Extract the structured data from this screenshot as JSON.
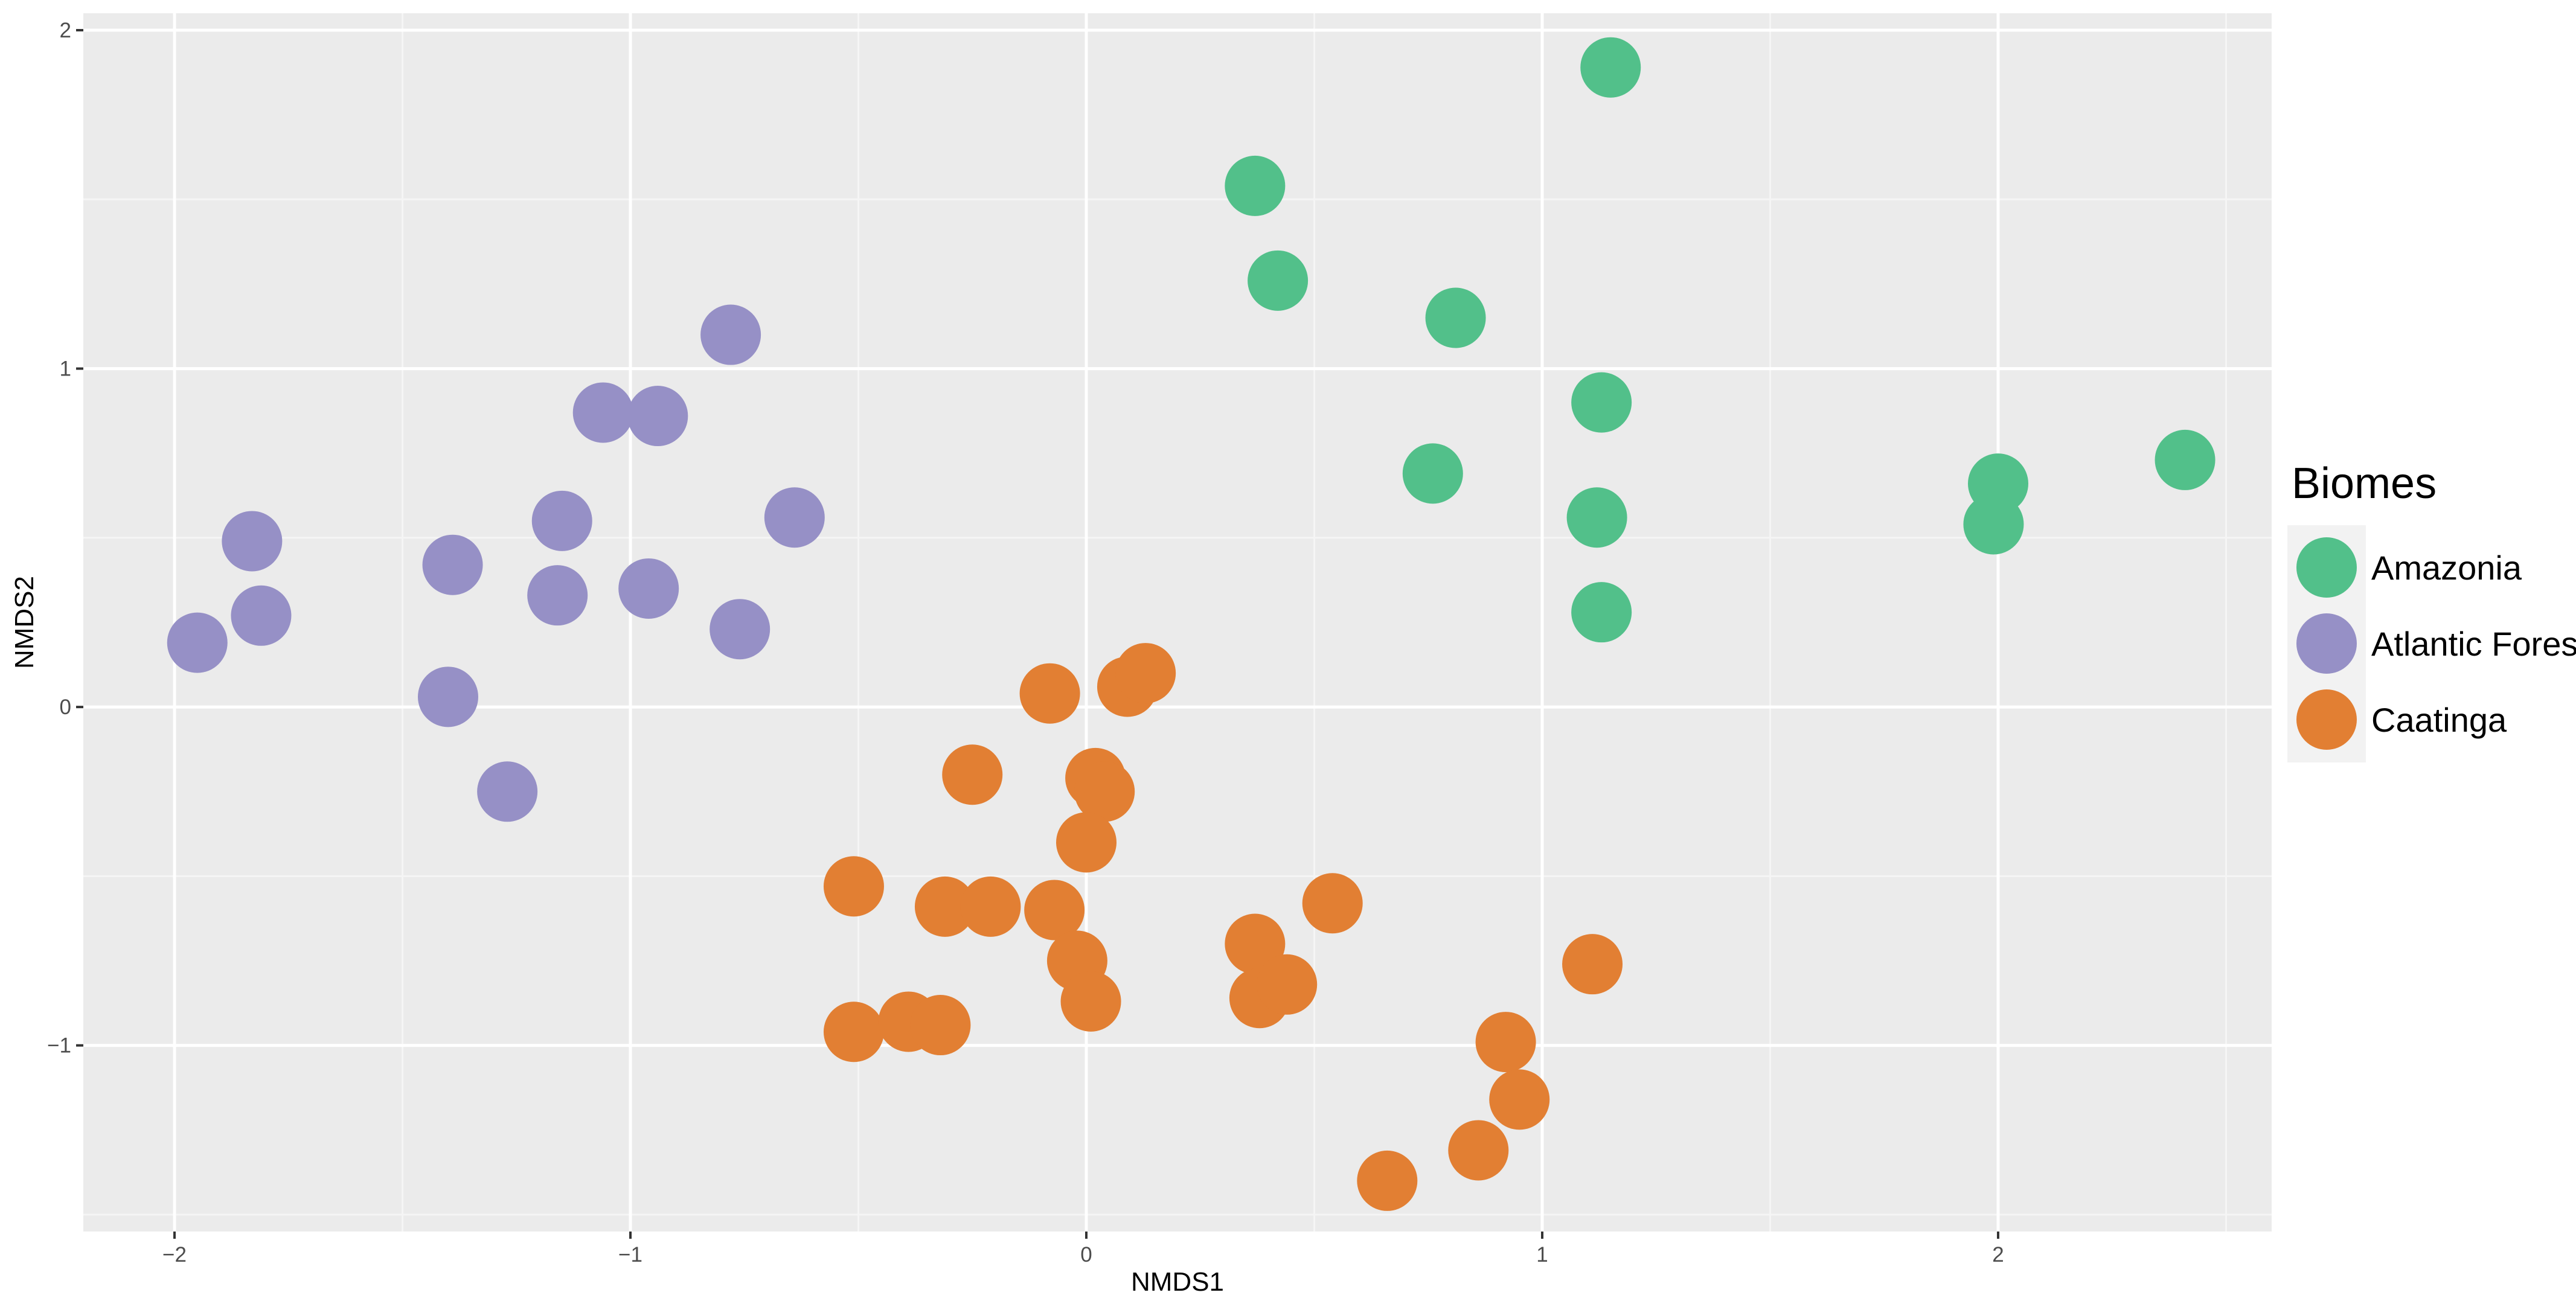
{
  "chart_data": {
    "type": "scatter",
    "title": "",
    "xlabel": "NMDS1",
    "ylabel": "NMDS2",
    "xlim": [
      -2.2,
      2.6
    ],
    "ylim": [
      -1.55,
      2.05
    ],
    "x_ticks": [
      -2,
      -1,
      0,
      1,
      2
    ],
    "y_ticks": [
      -1,
      0,
      1,
      2
    ],
    "x_tick_labels": [
      "−2",
      "−1",
      "0",
      "1",
      "2"
    ],
    "y_tick_labels": [
      "−1",
      "0",
      "1",
      "2"
    ],
    "grid": true,
    "legend": {
      "title": "Biomes",
      "placement": "right"
    },
    "series": [
      {
        "name": "Amazonia",
        "color": "#52c08a",
        "points": [
          [
            1.15,
            1.89
          ],
          [
            0.37,
            1.54
          ],
          [
            0.42,
            1.26
          ],
          [
            0.81,
            1.15
          ],
          [
            1.13,
            0.9
          ],
          [
            0.76,
            0.69
          ],
          [
            1.12,
            0.56
          ],
          [
            1.13,
            0.28
          ],
          [
            2.0,
            0.66
          ],
          [
            1.99,
            0.54
          ],
          [
            2.41,
            0.73
          ]
        ]
      },
      {
        "name": "Atlantic Forest",
        "color": "#9690c6",
        "points": [
          [
            -0.78,
            1.1
          ],
          [
            -1.06,
            0.87
          ],
          [
            -0.94,
            0.86
          ],
          [
            -1.15,
            0.55
          ],
          [
            -0.64,
            0.56
          ],
          [
            -1.39,
            0.42
          ],
          [
            -1.16,
            0.33
          ],
          [
            -0.96,
            0.35
          ],
          [
            -0.76,
            0.23
          ],
          [
            -1.83,
            0.49
          ],
          [
            -1.81,
            0.27
          ],
          [
            -1.95,
            0.19
          ],
          [
            -1.4,
            0.03
          ],
          [
            -1.27,
            -0.25
          ]
        ]
      },
      {
        "name": "Caatinga",
        "color": "#e27f33",
        "points": [
          [
            -0.08,
            0.04
          ],
          [
            0.09,
            0.06
          ],
          [
            0.13,
            0.1
          ],
          [
            -0.25,
            -0.2
          ],
          [
            0.02,
            -0.21
          ],
          [
            0.04,
            -0.25
          ],
          [
            0.0,
            -0.4
          ],
          [
            -0.51,
            -0.53
          ],
          [
            -0.31,
            -0.59
          ],
          [
            -0.21,
            -0.59
          ],
          [
            -0.07,
            -0.6
          ],
          [
            -0.02,
            -0.75
          ],
          [
            0.01,
            -0.87
          ],
          [
            0.37,
            -0.7
          ],
          [
            0.54,
            -0.58
          ],
          [
            0.38,
            -0.86
          ],
          [
            0.44,
            -0.82
          ],
          [
            -0.51,
            -0.96
          ],
          [
            -0.39,
            -0.93
          ],
          [
            -0.32,
            -0.94
          ],
          [
            1.11,
            -0.76
          ],
          [
            0.92,
            -0.99
          ],
          [
            0.95,
            -1.16
          ],
          [
            0.86,
            -1.31
          ],
          [
            0.66,
            -1.4
          ]
        ]
      }
    ]
  }
}
